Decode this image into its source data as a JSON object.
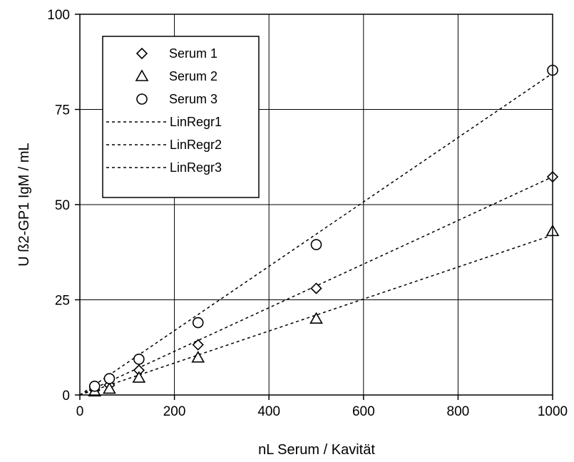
{
  "chart_data": {
    "type": "scatter",
    "xlabel": "nL Serum / Kavität",
    "ylabel": "U ß2-GP1  IgM / mL",
    "xlim": [
      0,
      1000
    ],
    "ylim": [
      0,
      100
    ],
    "x_ticks": [
      "0",
      "200",
      "400",
      "600",
      "800",
      "1000"
    ],
    "y_ticks": [
      "0",
      "25",
      "50",
      "75",
      "100"
    ],
    "grid": true,
    "legend_position": "top-left",
    "series": [
      {
        "name": "Serum 1",
        "marker": "diamond",
        "x": [
          31.25,
          62.5,
          125,
          250,
          500,
          1000
        ],
        "y": [
          1.3,
          2.6,
          6.5,
          13.2,
          28.0,
          57.3
        ]
      },
      {
        "name": "Serum 2",
        "marker": "triangle",
        "x": [
          31.25,
          62.5,
          125,
          250,
          500,
          1000
        ],
        "y": [
          0.9,
          1.6,
          4.5,
          9.8,
          20.0,
          43.0
        ]
      },
      {
        "name": "Serum 3",
        "marker": "circle",
        "x": [
          31.25,
          62.5,
          125,
          250,
          500,
          1000
        ],
        "y": [
          2.3,
          4.3,
          9.4,
          19.0,
          39.5,
          85.3
        ]
      }
    ],
    "regression_lines": [
      {
        "name": "LinRegr1",
        "x": [
          0,
          1000
        ],
        "y": [
          0,
          57.3
        ]
      },
      {
        "name": "LinRegr2",
        "x": [
          0,
          1000
        ],
        "y": [
          0,
          42.0
        ]
      },
      {
        "name": "LinRegr3",
        "x": [
          0,
          1000
        ],
        "y": [
          0,
          84.5
        ]
      }
    ]
  }
}
